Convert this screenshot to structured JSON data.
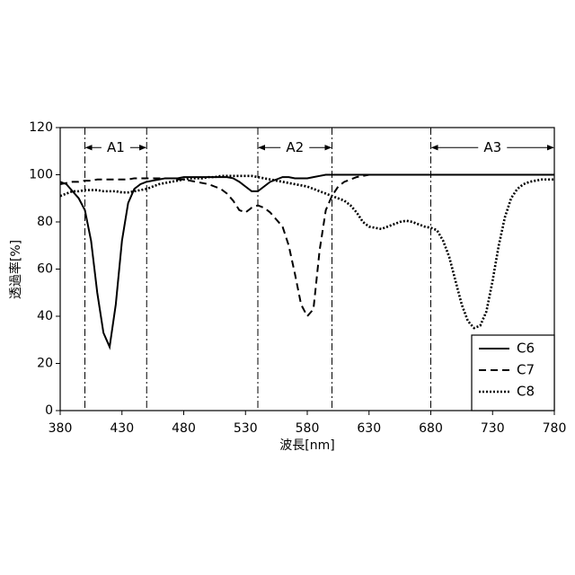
{
  "chart_data": {
    "type": "line",
    "xlabel": "波長[nm]",
    "ylabel": "透過率[%]",
    "xlim": [
      380,
      780
    ],
    "ylim": [
      0,
      120
    ],
    "xticks": [
      380,
      430,
      480,
      530,
      580,
      630,
      680,
      730,
      780
    ],
    "yticks": [
      0,
      20,
      40,
      60,
      80,
      100,
      120
    ],
    "legend": "lower right",
    "regions": [
      {
        "label": "A1",
        "range": [
          400,
          450
        ]
      },
      {
        "label": "A2",
        "range": [
          540,
          600
        ]
      },
      {
        "label": "A3",
        "range": [
          680,
          780
        ]
      }
    ],
    "x": [
      380,
      385,
      390,
      395,
      400,
      405,
      410,
      415,
      420,
      425,
      430,
      435,
      440,
      445,
      450,
      455,
      460,
      465,
      470,
      475,
      480,
      485,
      490,
      495,
      500,
      505,
      510,
      515,
      520,
      525,
      530,
      535,
      540,
      545,
      550,
      555,
      560,
      565,
      570,
      575,
      580,
      585,
      590,
      595,
      600,
      605,
      610,
      615,
      620,
      625,
      630,
      635,
      640,
      645,
      650,
      655,
      660,
      665,
      670,
      675,
      680,
      685,
      690,
      695,
      700,
      705,
      710,
      715,
      720,
      725,
      730,
      735,
      740,
      745,
      750,
      755,
      760,
      765,
      770,
      775,
      780
    ],
    "series": [
      {
        "name": "C6",
        "color": "#000000",
        "style": "solid",
        "values": [
          97,
          96,
          93,
          90,
          85,
          72,
          50,
          33,
          27,
          45,
          72,
          88,
          94,
          96,
          97,
          97.5,
          98,
          98.5,
          98.5,
          98.5,
          99,
          99,
          99,
          99,
          99,
          99,
          99,
          99,
          98.5,
          97,
          95,
          93,
          93,
          95,
          97,
          98,
          99,
          99,
          98.5,
          98.5,
          98.5,
          99,
          99.5,
          100,
          100,
          100,
          100,
          100,
          100,
          100,
          100,
          100,
          100,
          100,
          100,
          100,
          100,
          100,
          100,
          100,
          100,
          100,
          100,
          100,
          100,
          100,
          100,
          100,
          100,
          100,
          100,
          100,
          100,
          100,
          100,
          100,
          100,
          100,
          100,
          100,
          100
        ]
      },
      {
        "name": "C7",
        "color": "#000000",
        "style": "dashed",
        "values": [
          96,
          96.5,
          97,
          97,
          97.5,
          97.5,
          98,
          98,
          98,
          98,
          98,
          98,
          98.5,
          98.5,
          98.5,
          98.5,
          98.5,
          98.5,
          98.5,
          98,
          98,
          97.5,
          97,
          96.5,
          96,
          95,
          94,
          92,
          89,
          85,
          84,
          86,
          87,
          86,
          84,
          81,
          78,
          70,
          58,
          45,
          40,
          43,
          68,
          85,
          91,
          95,
          97,
          98,
          99,
          99.5,
          100,
          100,
          100,
          100,
          100,
          100,
          100,
          100,
          100,
          100,
          100,
          100,
          100,
          100,
          100,
          100,
          100,
          100,
          100,
          100,
          100,
          100,
          100,
          100,
          100,
          100,
          100,
          100,
          100,
          100,
          100
        ]
      },
      {
        "name": "C8",
        "color": "#000000",
        "style": "dotted",
        "values": [
          91,
          92,
          93,
          93,
          93.5,
          93.5,
          93.5,
          93,
          93,
          93,
          92.5,
          92.5,
          93,
          93.5,
          94,
          95,
          96,
          96.5,
          97,
          97.5,
          98,
          98.5,
          98.5,
          98.5,
          99,
          99,
          99.5,
          99.5,
          99.5,
          99.5,
          99.5,
          99.5,
          99,
          98.5,
          98,
          97.5,
          97,
          96.5,
          96,
          95.5,
          95,
          94,
          93,
          92,
          91,
          90,
          89,
          87,
          84,
          80,
          78,
          77.5,
          77,
          78,
          79,
          80,
          80.5,
          80,
          79,
          78,
          77.5,
          76.5,
          72,
          65,
          55,
          45,
          38,
          35,
          36,
          42,
          55,
          70,
          82,
          90,
          94,
          96,
          97,
          97.5,
          98,
          98,
          98
        ]
      }
    ]
  }
}
